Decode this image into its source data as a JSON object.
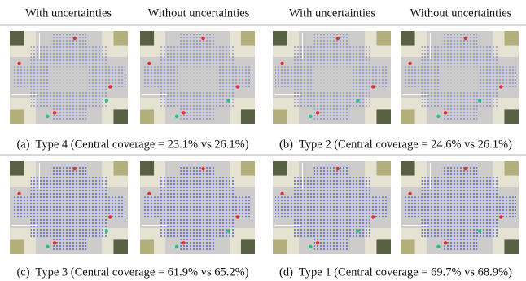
{
  "headers": [
    "With uncertainties",
    "Without uncertainties",
    "With uncertainties",
    "Without uncertainties"
  ],
  "captions": [
    "(a)  Type 4 (Central coverage = 23.1% vs 26.1%)",
    "(b)  Type 2 (Central coverage = 24.6% vs 26.1%)",
    "(c)  Type 3 (Central coverage = 61.9% vs 65.2%)",
    "(d)  Type 1 (Central coverage = 69.7% vs 68.9%)"
  ]
}
